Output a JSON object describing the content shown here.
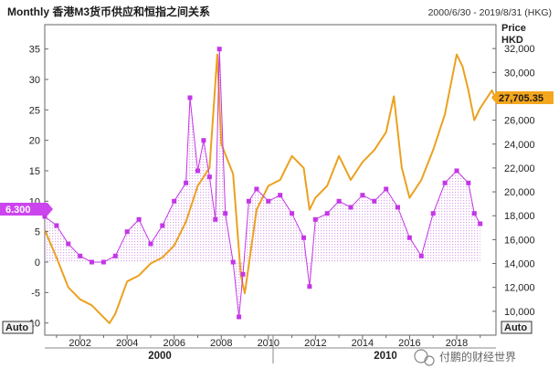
{
  "header": {
    "title": "Monthly 香港M3货币供应和恒指之间关系",
    "date_range": "2000/6/30 - 2019/8/31 (HKG)"
  },
  "left_axis": {
    "ticks": [
      "35",
      "30",
      "25",
      "20",
      "15",
      "10",
      "5",
      "0",
      "-5",
      "-10"
    ],
    "auto_label": "Auto"
  },
  "right_axis": {
    "title_line1": "Price",
    "title_line2": "HKD",
    "ticks": [
      "32,000",
      "30,000",
      "28,000",
      "26,000",
      "24,000",
      "22,000",
      "20,000",
      "18,000",
      "16,000",
      "14,000",
      "12,000",
      "10,000"
    ],
    "auto_label": "Auto"
  },
  "x_axis": {
    "ticks": [
      "2002",
      "2004",
      "2006",
      "2008",
      "2010",
      "2012",
      "2014",
      "2016",
      "2018"
    ],
    "eras": [
      "2000",
      "2010"
    ]
  },
  "last_values": {
    "m3": "6.300",
    "hsi": "27,705.35"
  },
  "watermark": "付鹏的财经世界",
  "colors": {
    "m3": "#c436e6",
    "hsi": "#eba11f",
    "fill_dots": "#d9a8ea",
    "m3_flag": "#cc44ee",
    "hsi_flag": "#f4a61e"
  },
  "chart_data": {
    "type": "line",
    "title": "Monthly 香港M3货币供应和恒指之间关系",
    "xlim": [
      2000.5,
      2019.67
    ],
    "series": [
      {
        "axis": "left",
        "style": "markers with dotted fill to zero",
        "ylim": [
          -12,
          39
        ],
        "x": [
          2000.5,
          2001.0,
          2001.5,
          2002.0,
          2002.5,
          2003.0,
          2003.5,
          2004.0,
          2004.5,
          2005.0,
          2005.5,
          2006.0,
          2006.5,
          2006.67,
          2007.0,
          2007.25,
          2007.5,
          2007.75,
          2007.92,
          2008.17,
          2008.5,
          2008.75,
          2008.92,
          2009.17,
          2009.5,
          2010.0,
          2010.5,
          2011.0,
          2011.5,
          2011.75,
          2012.0,
          2012.5,
          2013.0,
          2013.5,
          2014.0,
          2014.5,
          2015.0,
          2015.5,
          2016.0,
          2016.5,
          2017.0,
          2017.5,
          2018.0,
          2018.5,
          2018.75,
          2019.0
        ],
        "values": [
          7.5,
          6,
          3,
          1,
          0,
          0,
          1,
          5,
          7,
          3,
          6,
          10,
          13,
          27,
          15,
          20,
          14,
          7,
          35,
          8,
          0,
          -9,
          -2,
          10,
          12,
          10,
          11,
          8,
          4,
          -4,
          7,
          8,
          10,
          9,
          11,
          10,
          12,
          9,
          4,
          1,
          8,
          13,
          15,
          13,
          8,
          6.3
        ]
      },
      {
        "axis": "right",
        "style": "line",
        "ylim": [
          8000,
          34000
        ],
        "x": [
          2000.5,
          2001.0,
          2001.5,
          2002.0,
          2002.5,
          2003.0,
          2003.25,
          2003.5,
          2004.0,
          2004.5,
          2005.0,
          2005.5,
          2006.0,
          2006.5,
          2007.0,
          2007.5,
          2007.83,
          2008.0,
          2008.5,
          2008.83,
          2009.0,
          2009.5,
          2010.0,
          2010.5,
          2011.0,
          2011.5,
          2011.75,
          2012.0,
          2012.5,
          2013.0,
          2013.5,
          2014.0,
          2014.5,
          2015.0,
          2015.33,
          2015.67,
          2016.0,
          2016.5,
          2017.0,
          2017.5,
          2018.0,
          2018.25,
          2018.5,
          2018.75,
          2019.0,
          2019.5,
          2019.67
        ],
        "values": [
          16800,
          14500,
          12000,
          11000,
          10500,
          9500,
          9000,
          9800,
          12500,
          13000,
          14000,
          14500,
          15500,
          17500,
          20500,
          22000,
          31500,
          24000,
          21500,
          13000,
          11500,
          18500,
          20500,
          21000,
          23000,
          22000,
          18500,
          19500,
          20500,
          23000,
          21000,
          22500,
          23500,
          25000,
          28000,
          22000,
          19500,
          21000,
          23500,
          26500,
          31500,
          30500,
          28500,
          26000,
          27000,
          28500,
          27705.35
        ]
      }
    ]
  }
}
